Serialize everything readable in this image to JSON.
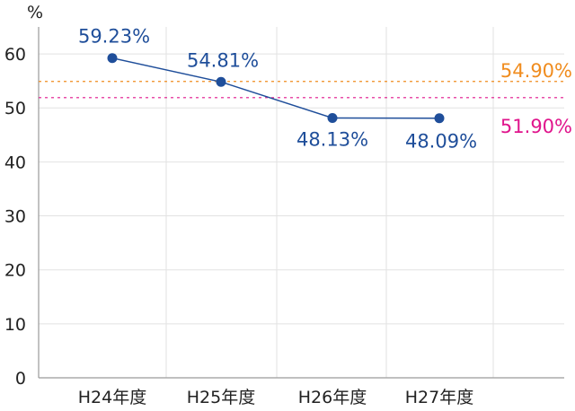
{
  "chart_data": {
    "type": "line",
    "ylabel": "%",
    "ylim": [
      0,
      65
    ],
    "yticks": [
      "0",
      "10",
      "20",
      "30",
      "40",
      "50",
      "60"
    ],
    "categories": [
      "H24年度",
      "H25年度",
      "H26年度",
      "H27年度"
    ],
    "series": [
      {
        "values": [
          59.23,
          54.81,
          48.13,
          48.09
        ],
        "labels": [
          "59.23%",
          "54.81%",
          "48.13%",
          "48.09%"
        ],
        "color": "#1f4e9a"
      }
    ],
    "reference_lines": [
      {
        "value": 54.9,
        "label": "54.90%",
        "color": "#f08c1e"
      },
      {
        "value": 51.9,
        "label": "51.90%",
        "color": "#e0148c"
      }
    ],
    "grid": true
  }
}
